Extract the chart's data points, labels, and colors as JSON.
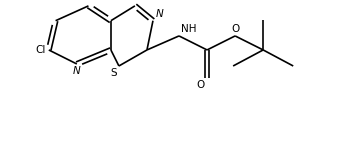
{
  "bg_color": "#ffffff",
  "line_color": "#000000",
  "line_width": 1.2,
  "font_size": 7.5,
  "xlim": [
    0.0,
    8.5
  ],
  "ylim": [
    0.5,
    4.2
  ]
}
